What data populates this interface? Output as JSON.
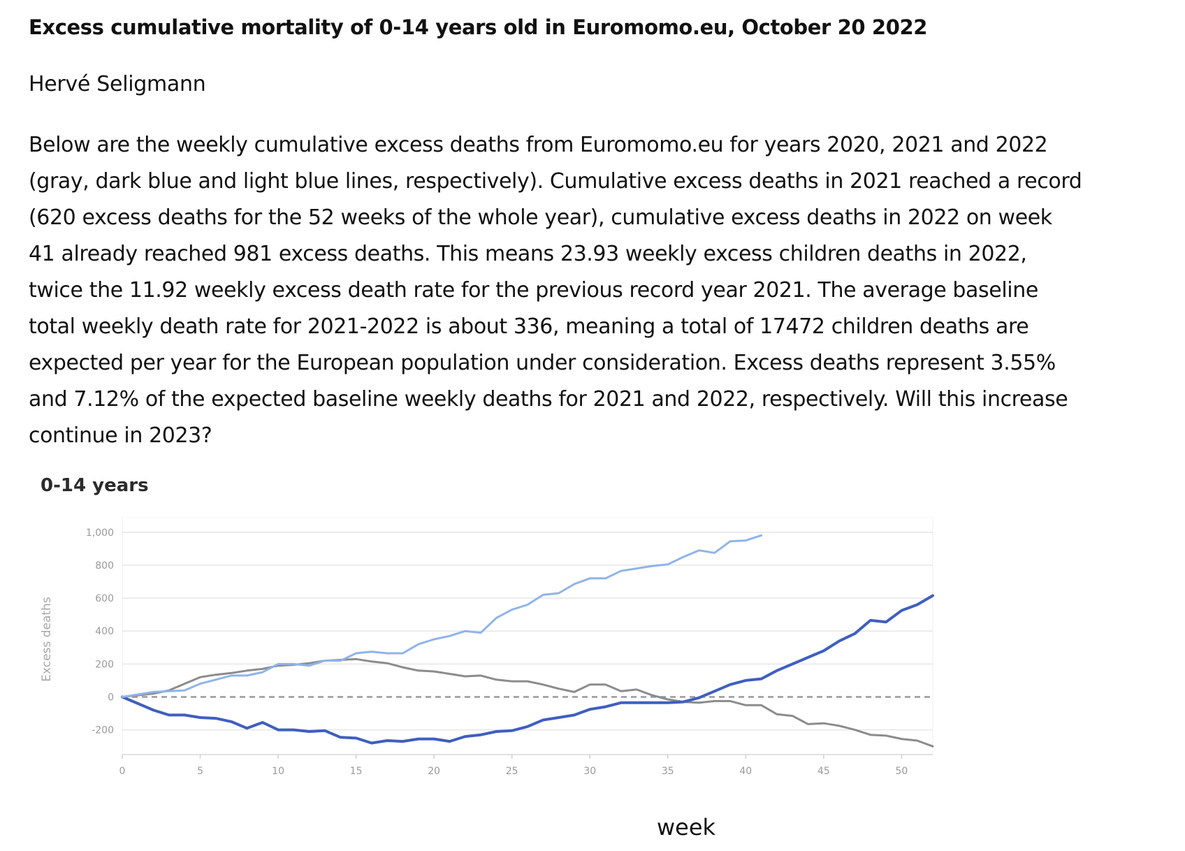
{
  "doc": {
    "title": "Excess cumulative mortality of 0-14 years old in Euromomo.eu, October 20 2022",
    "author": "Hervé Seligmann",
    "paragraph_lines": [
      "Below are the weekly cumulative excess deaths from Euromomo.eu for years 2020, 2021 and 2022",
      "(gray, dark blue and light blue lines, respectively). Cumulative excess deaths in 2021 reached a record",
      "(620 excess deaths for the 52 weeks of the whole year), cumulative excess deaths in 2022 on week",
      "41 already reached 981 excess deaths. This means 23.93 weekly excess children deaths in 2022,",
      "twice the 11.92 weekly excess death rate for the previous record year 2021. The average baseline",
      "total weekly death rate for 2021-2022 is about 336, meaning a total of 17472 children deaths are",
      "expected per year for the European population under consideration. Excess deaths represent 3.55%",
      "and 7.12% of the expected baseline weekly deaths for 2021 and 2022, respectively. Will this increase",
      "continue in 2023?"
    ],
    "week_label": "week"
  },
  "chart_data": {
    "type": "line",
    "title": "0-14 years",
    "xlabel": "week",
    "ylabel": "Excess deaths",
    "xlim": [
      0,
      52
    ],
    "ylim": [
      -350,
      1050
    ],
    "x_ticks": [
      0,
      5,
      10,
      15,
      20,
      25,
      30,
      35,
      40,
      45,
      50
    ],
    "y_ticks": [
      -200,
      0,
      200,
      400,
      600,
      800,
      1000
    ],
    "y_tick_labels": [
      "-200",
      "0",
      "200",
      "400",
      "600",
      "800",
      "1,000"
    ],
    "x_tick_labels": [
      "0",
      "5",
      "10",
      "15",
      "20",
      "25",
      "30",
      "35",
      "40",
      "45",
      "50"
    ],
    "grid": true,
    "zero_line": "dashed",
    "series": [
      {
        "color": "#8c8c8c",
        "x": [
          0,
          1,
          2,
          3,
          4,
          5,
          6,
          7,
          8,
          9,
          10,
          11,
          12,
          13,
          14,
          15,
          16,
          17,
          18,
          19,
          20,
          21,
          22,
          23,
          24,
          25,
          26,
          27,
          28,
          29,
          30,
          31,
          32,
          33,
          34,
          35,
          36,
          37,
          38,
          39,
          40,
          41,
          42,
          43,
          44,
          45,
          46,
          47,
          48,
          49,
          50,
          51,
          52
        ],
        "values": [
          0,
          10,
          20,
          40,
          80,
          120,
          135,
          145,
          160,
          170,
          190,
          195,
          205,
          220,
          225,
          230,
          215,
          205,
          180,
          160,
          155,
          140,
          125,
          130,
          105,
          95,
          95,
          75,
          50,
          30,
          75,
          75,
          35,
          45,
          10,
          -15,
          -30,
          -35,
          -25,
          -25,
          -50,
          -50,
          -105,
          -115,
          -165,
          -160,
          -175,
          -200,
          -230,
          -235,
          -255,
          -265,
          -300
        ]
      },
      {
        "color": "#3f5fbf",
        "x": [
          0,
          1,
          2,
          3,
          4,
          5,
          6,
          7,
          8,
          9,
          10,
          11,
          12,
          13,
          14,
          15,
          16,
          17,
          18,
          19,
          20,
          21,
          22,
          23,
          24,
          25,
          26,
          27,
          28,
          29,
          30,
          31,
          32,
          33,
          34,
          35,
          36,
          37,
          38,
          39,
          40,
          41,
          42,
          43,
          44,
          45,
          46,
          47,
          48,
          49,
          50,
          51,
          52
        ],
        "values": [
          0,
          -40,
          -80,
          -110,
          -110,
          -125,
          -130,
          -150,
          -190,
          -155,
          -200,
          -200,
          -210,
          -205,
          -245,
          -250,
          -280,
          -265,
          -270,
          -255,
          -255,
          -270,
          -240,
          -230,
          -210,
          -205,
          -180,
          -140,
          -125,
          -110,
          -75,
          -60,
          -35,
          -35,
          -35,
          -35,
          -30,
          -5,
          35,
          75,
          100,
          110,
          160,
          200,
          240,
          280,
          340,
          385,
          465,
          455,
          525,
          560,
          615
        ]
      },
      {
        "color": "#8fb4ea",
        "x": [
          0,
          1,
          2,
          3,
          4,
          5,
          6,
          7,
          8,
          9,
          10,
          11,
          12,
          13,
          14,
          15,
          16,
          17,
          18,
          19,
          20,
          21,
          22,
          23,
          24,
          25,
          26,
          27,
          28,
          29,
          30,
          31,
          32,
          33,
          34,
          35,
          36,
          37,
          38,
          39,
          40,
          41
        ],
        "values": [
          0,
          15,
          30,
          35,
          40,
          80,
          105,
          130,
          130,
          150,
          200,
          200,
          190,
          220,
          220,
          265,
          275,
          265,
          265,
          320,
          350,
          370,
          400,
          390,
          480,
          530,
          560,
          620,
          630,
          685,
          720,
          720,
          765,
          780,
          795,
          805,
          850,
          890,
          875,
          945,
          950,
          981
        ]
      }
    ]
  }
}
